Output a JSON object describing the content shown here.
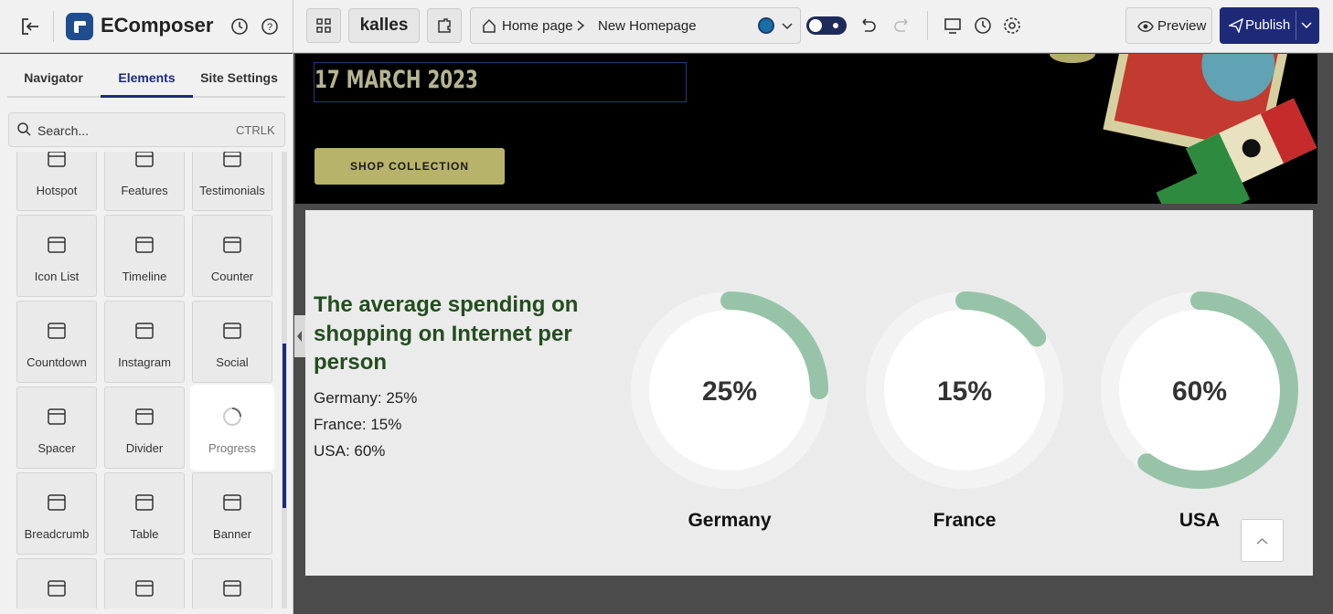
{
  "header": {
    "app_name": "EComposer",
    "store": "kalles",
    "breadcrumb": [
      "Home page",
      "New Homepage"
    ],
    "preview": "Preview",
    "publish": "Publish"
  },
  "sidebar": {
    "tabs": [
      "Navigator",
      "Elements",
      "Site Settings"
    ],
    "search_placeholder": "Search...",
    "search_shortcut": "CTRLK",
    "elements": [
      "Hotspot",
      "Features",
      "Testimonials",
      "Icon List",
      "Timeline",
      "Counter",
      "Countdown",
      "Instagram",
      "Social",
      "Spacer",
      "Divider",
      "Progress",
      "Breadcrumb",
      "Table",
      "Banner"
    ]
  },
  "canvas": {
    "hero_date": "17 MARCH 2023",
    "hero_button": "SHOP COLLECTION",
    "section": {
      "title": "The average spending on shopping on Internet per person",
      "lines": [
        "Germany: 25%",
        "France: 15%",
        "USA: 60%"
      ],
      "progress": {
        "categories": [
          "Germany",
          "France",
          "USA"
        ],
        "values": [
          25,
          15,
          60
        ],
        "value_labels": [
          "25%",
          "15%",
          "60%"
        ],
        "range": [
          0,
          100
        ],
        "color": "#97c4a8"
      }
    }
  }
}
